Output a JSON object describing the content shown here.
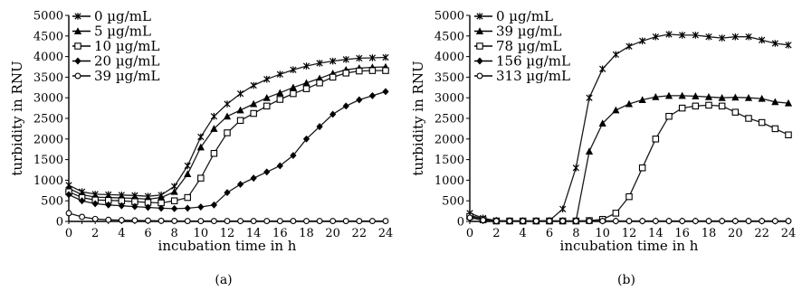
{
  "chart_data": [
    {
      "type": "line",
      "panel": "(a)",
      "xlabel": "incubation time in h",
      "ylabel": "turbidity in RNU",
      "xlim": [
        0,
        24
      ],
      "ylim": [
        0,
        5000
      ],
      "xticks": [
        0,
        2,
        4,
        6,
        8,
        10,
        12,
        14,
        16,
        18,
        20,
        22,
        24
      ],
      "yticks": [
        0,
        500,
        1000,
        1500,
        2000,
        2500,
        3000,
        3500,
        4000,
        4500,
        5000
      ],
      "x": [
        0,
        1,
        2,
        3,
        4,
        5,
        6,
        7,
        8,
        9,
        10,
        11,
        12,
        13,
        14,
        15,
        16,
        17,
        18,
        19,
        20,
        21,
        22,
        23,
        24
      ],
      "legend_position": "top-left",
      "series": [
        {
          "name": "0 µg/mL",
          "marker": "star",
          "values": [
            880,
            720,
            660,
            650,
            640,
            630,
            610,
            640,
            850,
            1350,
            2050,
            2550,
            2850,
            3100,
            3300,
            3450,
            3570,
            3680,
            3770,
            3840,
            3890,
            3930,
            3960,
            3970,
            3980
          ]
        },
        {
          "name": "5 µg/mL",
          "marker": "triangle",
          "values": [
            800,
            650,
            590,
            580,
            570,
            560,
            540,
            580,
            720,
            1150,
            1800,
            2250,
            2550,
            2700,
            2850,
            3000,
            3120,
            3250,
            3360,
            3470,
            3590,
            3680,
            3720,
            3740,
            3750
          ]
        },
        {
          "name": "10 µg/mL",
          "marker": "square",
          "values": [
            720,
            580,
            520,
            510,
            500,
            480,
            460,
            450,
            500,
            580,
            1050,
            1650,
            2150,
            2450,
            2620,
            2800,
            2960,
            3100,
            3220,
            3360,
            3500,
            3600,
            3650,
            3660,
            3660
          ]
        },
        {
          "name": "20 µg/mL",
          "marker": "diamond",
          "values": [
            650,
            500,
            430,
            400,
            380,
            360,
            340,
            320,
            310,
            320,
            350,
            400,
            700,
            900,
            1050,
            1200,
            1350,
            1600,
            2000,
            2300,
            2600,
            2800,
            2950,
            3050,
            3150
          ]
        },
        {
          "name": "39 µg/mL",
          "marker": "circle",
          "values": [
            200,
            110,
            60,
            40,
            30,
            25,
            20,
            15,
            12,
            10,
            10,
            10,
            10,
            10,
            10,
            10,
            10,
            10,
            10,
            10,
            10,
            10,
            10,
            10,
            10
          ]
        }
      ]
    },
    {
      "type": "line",
      "panel": "(b)",
      "xlabel": "incubation time in h",
      "ylabel": "turbidity in RNU",
      "xlim": [
        0,
        24
      ],
      "ylim": [
        0,
        5000
      ],
      "xticks": [
        0,
        2,
        4,
        6,
        8,
        10,
        12,
        14,
        16,
        18,
        20,
        22,
        24
      ],
      "yticks": [
        0,
        500,
        1000,
        1500,
        2000,
        2500,
        3000,
        3500,
        4000,
        4500,
        5000
      ],
      "x": [
        0,
        1,
        2,
        3,
        4,
        5,
        6,
        7,
        8,
        9,
        10,
        11,
        12,
        13,
        14,
        15,
        16,
        17,
        18,
        19,
        20,
        21,
        22,
        23,
        24
      ],
      "legend_position": "top-left",
      "series": [
        {
          "name": "0 µg/mL",
          "marker": "star",
          "values": [
            200,
            80,
            20,
            10,
            10,
            10,
            20,
            300,
            1300,
            3000,
            3700,
            4050,
            4250,
            4380,
            4480,
            4540,
            4520,
            4520,
            4480,
            4450,
            4480,
            4480,
            4400,
            4320,
            4280
          ]
        },
        {
          "name": "39 µg/mL",
          "marker": "triangle",
          "values": [
            150,
            60,
            20,
            10,
            10,
            10,
            10,
            10,
            10,
            1700,
            2380,
            2700,
            2850,
            2950,
            3020,
            3050,
            3050,
            3040,
            3020,
            3000,
            3010,
            3000,
            2980,
            2900,
            2870
          ]
        },
        {
          "name": "78 µg/mL",
          "marker": "square",
          "values": [
            120,
            40,
            10,
            10,
            10,
            10,
            10,
            10,
            10,
            20,
            50,
            200,
            600,
            1300,
            2000,
            2550,
            2750,
            2800,
            2820,
            2800,
            2650,
            2500,
            2400,
            2250,
            2100
          ]
        },
        {
          "name": "156 µg/mL",
          "marker": "diamond",
          "values": [
            100,
            30,
            10,
            10,
            10,
            10,
            10,
            10,
            10,
            10,
            10,
            10,
            10,
            10,
            10,
            10,
            10,
            10,
            10,
            10,
            10,
            10,
            10,
            10,
            10
          ]
        },
        {
          "name": "313 µg/mL",
          "marker": "circle",
          "values": [
            90,
            30,
            10,
            10,
            10,
            10,
            10,
            10,
            10,
            10,
            10,
            10,
            10,
            10,
            10,
            10,
            10,
            10,
            10,
            10,
            10,
            10,
            10,
            10,
            10
          ]
        }
      ]
    }
  ]
}
